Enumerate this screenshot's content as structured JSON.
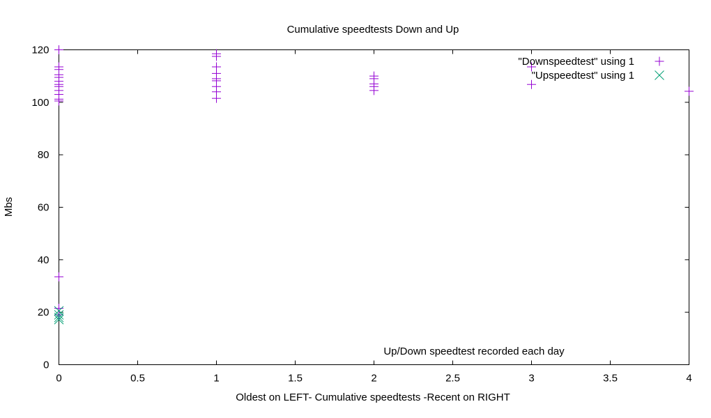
{
  "chart_data": {
    "type": "scatter",
    "title": "Cumulative speedtests Down and Up",
    "xlabel": "Oldest on LEFT- Cumulative speedtests -Recent on RIGHT",
    "ylabel": "Mbs",
    "xlim": [
      0,
      4
    ],
    "ylim": [
      0,
      120
    ],
    "xticks": [
      "0",
      "0.5",
      "1",
      "1.5",
      "2",
      "2.5",
      "3",
      "3.5",
      "4"
    ],
    "yticks": [
      "0",
      "20",
      "40",
      "60",
      "80",
      "100",
      "120"
    ],
    "xtick_values": [
      0,
      0.5,
      1,
      1.5,
      2,
      2.5,
      3,
      3.5,
      4
    ],
    "ytick_values": [
      0,
      20,
      40,
      60,
      80,
      100,
      120
    ],
    "grid": false,
    "legend_position": "top-right",
    "annotation": "Up/Down speedtest recorded each day",
    "series": [
      {
        "name": "\"Downspeedtest\" using 1",
        "marker": "plus",
        "color": "#9400d3",
        "points": [
          [
            0,
            120
          ],
          [
            0,
            113.5
          ],
          [
            0,
            112.5
          ],
          [
            0,
            110.5
          ],
          [
            0,
            109.5
          ],
          [
            0,
            108
          ],
          [
            0,
            106.8
          ],
          [
            0,
            106
          ],
          [
            0,
            104.5
          ],
          [
            0,
            103
          ],
          [
            0,
            101.2
          ],
          [
            0,
            100.5
          ],
          [
            0,
            33.5
          ],
          [
            0,
            21.5
          ],
          [
            0,
            19
          ],
          [
            1,
            118.5
          ],
          [
            1,
            117.5
          ],
          [
            1,
            113.5
          ],
          [
            1,
            111
          ],
          [
            1,
            109
          ],
          [
            1,
            108.2
          ],
          [
            1,
            106
          ],
          [
            1,
            104
          ],
          [
            1,
            101.5
          ],
          [
            2,
            110
          ],
          [
            2,
            109
          ],
          [
            2,
            107
          ],
          [
            2,
            106
          ],
          [
            2,
            104.5
          ],
          [
            3,
            113.5
          ],
          [
            3,
            106.8
          ],
          [
            4,
            104.2
          ]
        ]
      },
      {
        "name": "\"Upspeedtest\" using 1",
        "marker": "cross",
        "color": "#009e73",
        "points": [
          [
            0,
            20.5
          ],
          [
            0,
            19
          ],
          [
            0,
            18
          ],
          [
            0,
            17.2
          ]
        ]
      }
    ]
  }
}
